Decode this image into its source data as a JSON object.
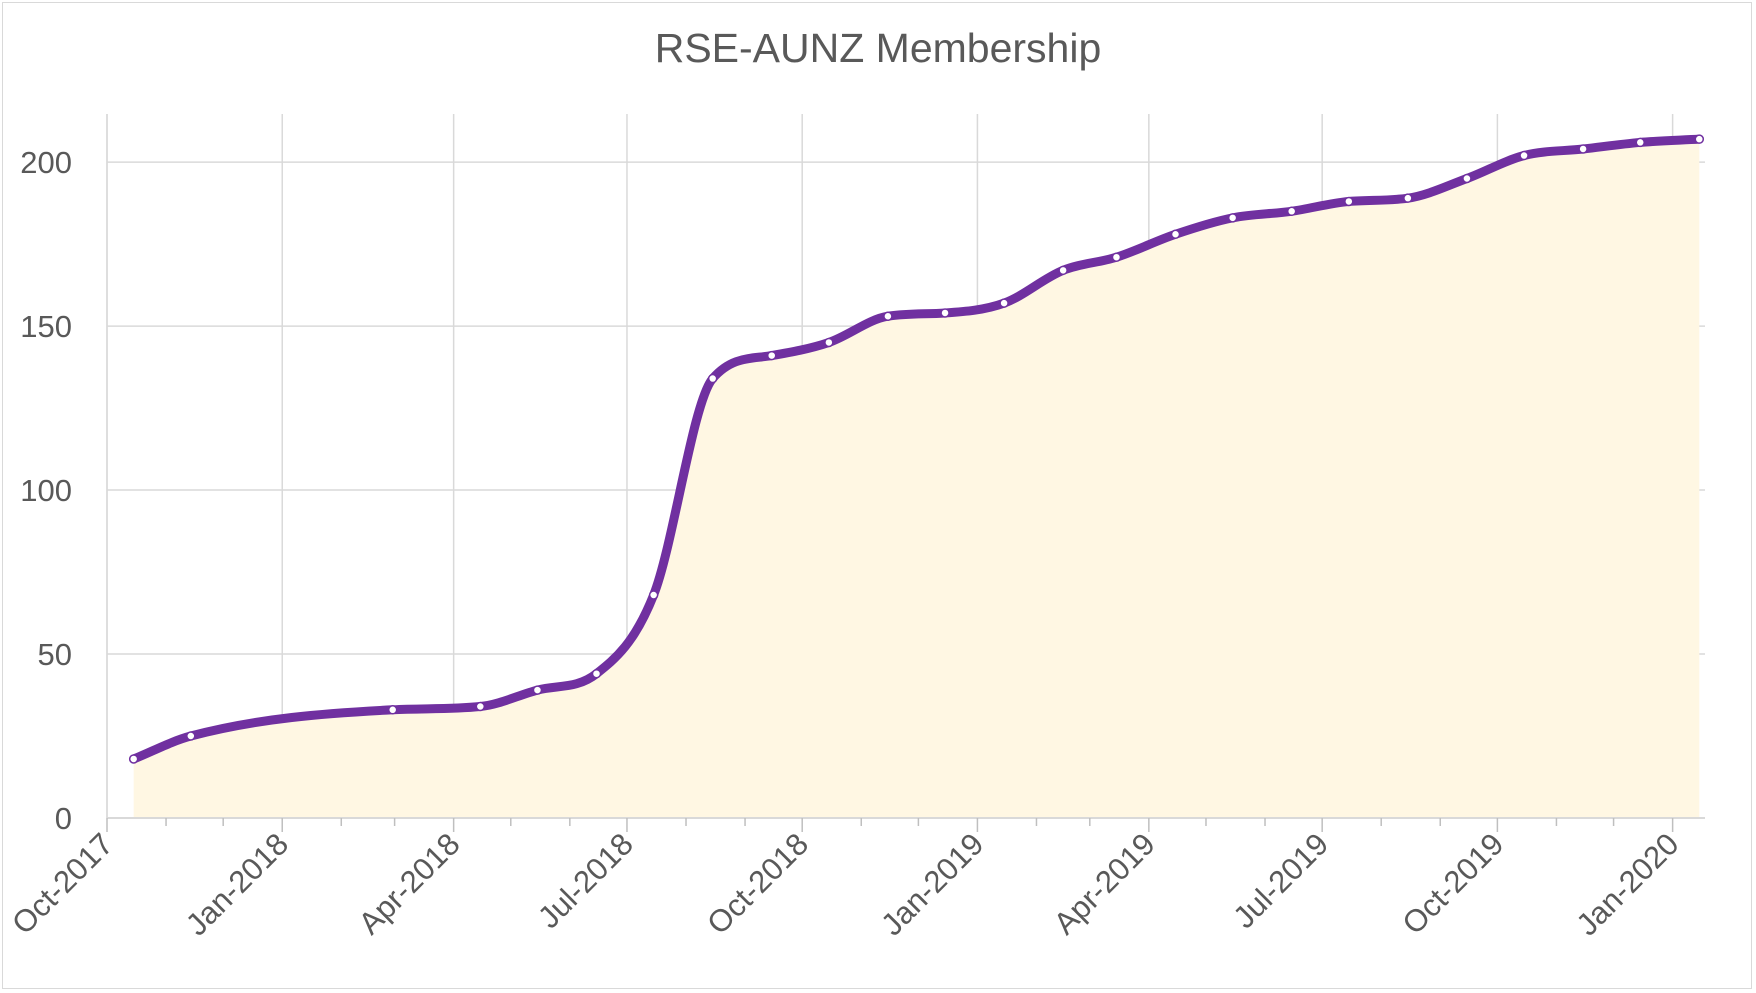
{
  "chart_data": {
    "type": "area",
    "title": "RSE-AUNZ Membership",
    "xlabel": "",
    "ylabel": "",
    "ylim": [
      0,
      210
    ],
    "y_ticks": [
      0,
      50,
      100,
      150,
      200
    ],
    "x_range": [
      "2017-10-01",
      "2020-01-01"
    ],
    "x_tick_labels": [
      "Oct-2017",
      "Jan-2018",
      "Apr-2018",
      "Jul-2018",
      "Oct-2018",
      "Jan-2019",
      "Apr-2019",
      "Jul-2019",
      "Oct-2019",
      "Jan-2020"
    ],
    "x_tick_dates": [
      "2017-10-01",
      "2018-01-01",
      "2018-04-01",
      "2018-07-01",
      "2018-10-01",
      "2019-01-01",
      "2019-04-01",
      "2019-07-01",
      "2019-10-01",
      "2020-01-01"
    ],
    "grid": true,
    "legend": "none",
    "colors": {
      "line": "#7030a0",
      "fill": "#fff7e3",
      "marker_fill": "#ffffff",
      "grid": "#d9d9d9"
    },
    "series": [
      {
        "x": [
          "2017-10-15",
          "2017-11-14",
          "2018-02-28",
          "2018-04-15",
          "2018-05-15",
          "2018-06-15",
          "2018-07-15",
          "2018-08-15",
          "2018-09-15",
          "2018-10-15",
          "2018-11-15",
          "2018-12-15",
          "2019-01-15",
          "2019-02-15",
          "2019-03-15",
          "2019-04-15",
          "2019-05-15",
          "2019-06-15",
          "2019-07-15",
          "2019-08-15",
          "2019-09-15",
          "2019-10-15",
          "2019-11-15",
          "2019-12-15",
          "2020-01-15"
        ],
        "values": [
          18,
          25,
          33,
          34,
          39,
          44,
          68,
          134,
          141,
          145,
          153,
          154,
          157,
          167,
          171,
          178,
          183,
          185,
          188,
          189,
          195,
          202,
          204,
          206,
          207
        ]
      }
    ]
  }
}
